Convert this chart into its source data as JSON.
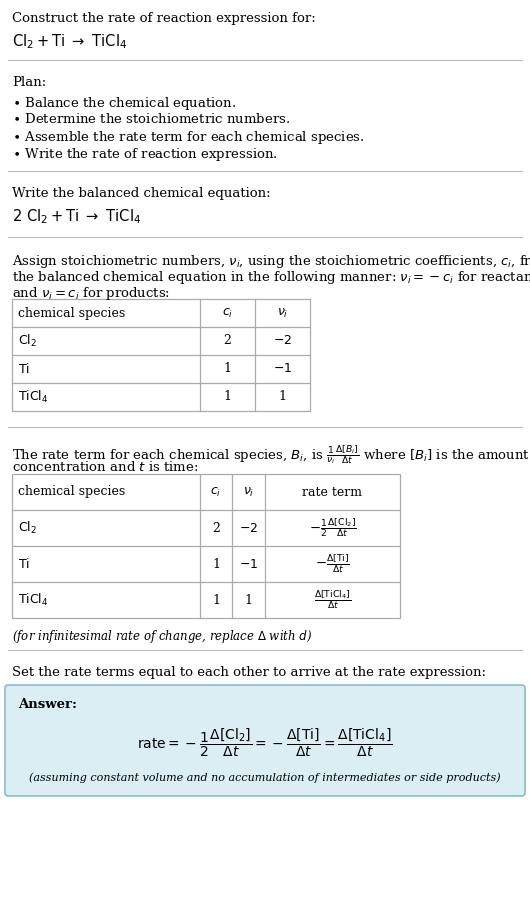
{
  "title_line1": "Construct the rate of reaction expression for:",
  "title_line2_latex": "$\\mathrm{Cl_2 + Ti\\ \\rightarrow\\ TiCl_4}$",
  "plan_header": "Plan:",
  "plan_items": [
    "$\\bullet$ Balance the chemical equation.",
    "$\\bullet$ Determine the stoichiometric numbers.",
    "$\\bullet$ Assemble the rate term for each chemical species.",
    "$\\bullet$ Write the rate of reaction expression."
  ],
  "balanced_header": "Write the balanced chemical equation:",
  "balanced_eq": "$\\mathrm{2\\ Cl_2 + Ti\\ \\rightarrow\\ TiCl_4}$",
  "stoich_intro1": "Assign stoichiometric numbers, $\\nu_i$, using the stoichiometric coefficients, $c_i$, from",
  "stoich_intro2": "the balanced chemical equation in the following manner: $\\nu_i = -c_i$ for reactants",
  "stoich_intro3": "and $\\nu_i = c_i$ for products:",
  "table1_headers": [
    "chemical species",
    "$c_i$",
    "$\\nu_i$"
  ],
  "table1_rows": [
    [
      "$\\mathrm{Cl_2}$",
      "2",
      "$-2$"
    ],
    [
      "$\\mathrm{Ti}$",
      "1",
      "$-1$"
    ],
    [
      "$\\mathrm{TiCl_4}$",
      "1",
      "1"
    ]
  ],
  "rate_intro1": "The rate term for each chemical species, $B_i$, is $\\frac{1}{\\nu_i}\\frac{\\Delta[B_i]}{\\Delta t}$ where $[B_i]$ is the amount",
  "rate_intro2": "concentration and $t$ is time:",
  "table2_headers": [
    "chemical species",
    "$c_i$",
    "$\\nu_i$",
    "rate term"
  ],
  "table2_rows": [
    [
      "$\\mathrm{Cl_2}$",
      "2",
      "$-2$",
      "$-\\frac{1}{2}\\frac{\\Delta[\\mathrm{Cl_2}]}{\\Delta t}$"
    ],
    [
      "$\\mathrm{Ti}$",
      "1",
      "$-1$",
      "$-\\frac{\\Delta[\\mathrm{Ti}]}{\\Delta t}$"
    ],
    [
      "$\\mathrm{TiCl_4}$",
      "1",
      "1",
      "$\\frac{\\Delta[\\mathrm{TiCl_4}]}{\\Delta t}$"
    ]
  ],
  "infinitesimal_note": "(for infinitesimal rate of change, replace $\\Delta$ with $d$)",
  "set_equal_text": "Set the rate terms equal to each other to arrive at the rate expression:",
  "answer_label": "Answer:",
  "answer_eq": "$\\mathrm{rate} = -\\dfrac{1}{2}\\dfrac{\\Delta[\\mathrm{Cl_2}]}{\\Delta t} = -\\dfrac{\\Delta[\\mathrm{Ti}]}{\\Delta t} = \\dfrac{\\Delta[\\mathrm{TiCl_4}]}{\\Delta t}$",
  "answer_note": "(assuming constant volume and no accumulation of intermediates or side products)",
  "answer_box_color": "#daeef3",
  "answer_box_border": "#8bbccc",
  "bg_color": "#ffffff",
  "text_color": "#000000",
  "table_border_color": "#aaaaaa",
  "sep_color": "#bbbbbb"
}
